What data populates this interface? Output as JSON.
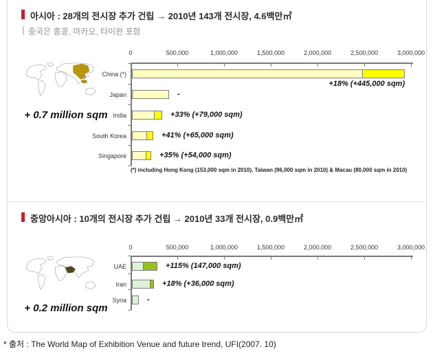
{
  "page": {
    "source_note": "* 출처 : The World Map of Exhibition Venue and future trend, UFI(2007. 10)"
  },
  "colors": {
    "accent_red": "#c8202f",
    "asia_map_highlight": "#b8960f",
    "mideast_map_highlight": "#4d4a15",
    "bar_base_yellow": "#ffffc2",
    "bar_add_yellow": "#ffff00",
    "bar_base_green": "#ddf3d8",
    "bar_add_green": "#95c11f"
  },
  "sections": [
    {
      "title": "아시아 : 28개의 전시장 추가 건립 → 2010년 143개 전시장, 4.6백만㎡",
      "subtitle": "중국은 홍콩, 마카오, 타이완 포함",
      "map_caption": "+ 0.7 million sqm",
      "footnote": "(*) including Hong Kong (153,000 sqm in 2010), Taiwan (96,000 sqm in 2010) & Macau (80,000 sqm in 2010)"
    },
    {
      "title": "중앙아시아 : 10개의 전시장 추가 건립 → 2010년 33개 전시장, 0.9백만㎡",
      "map_caption": "+ 0.2 million sqm"
    }
  ],
  "chart_data": [
    {
      "type": "bar",
      "orientation": "horizontal",
      "title": "Asia exhibition venue space 2010 (sqm)",
      "xlim": [
        0,
        3000000
      ],
      "unit": "sqm",
      "tick_labels": [
        "0",
        "500,000",
        "1,000,000",
        "1,500,000",
        "2,000,000",
        "2,500,000",
        "3,000,000"
      ],
      "colors": {
        "base": "#ffffc2",
        "add": "#ffff00"
      },
      "rows": [
        {
          "label": "China (*)",
          "base": 2472000,
          "add": 445000,
          "annotation": "+18% (+445,000 sqm)",
          "annotation_pos": "below"
        },
        {
          "label": "Japan",
          "base": 400000,
          "add": 0,
          "annotation": "-",
          "annotation_pos": "right"
        },
        {
          "label": "India",
          "base": 239000,
          "add": 79000,
          "annotation": "+33% (+79,000 sqm)",
          "annotation_pos": "right"
        },
        {
          "label": "South Korea",
          "base": 158500,
          "add": 65000,
          "annotation": "+41% (+65,000 sqm)",
          "annotation_pos": "right"
        },
        {
          "label": "Singapore",
          "base": 154000,
          "add": 54000,
          "annotation": "+35% (+54,000 sqm)",
          "annotation_pos": "right"
        }
      ]
    },
    {
      "type": "bar",
      "orientation": "horizontal",
      "title": "Central Asia exhibition venue space 2010 (sqm)",
      "xlim": [
        0,
        3000000
      ],
      "unit": "sqm",
      "tick_labels": [
        "0",
        "500,000",
        "1,000,000",
        "1,500,000",
        "2,000,000",
        "2,500,000",
        "3,000,000"
      ],
      "colors": {
        "base": "#ddf3d8",
        "add": "#95c11f"
      },
      "rows": [
        {
          "label": "UAE",
          "base": 128000,
          "add": 147000,
          "annotation": "+115% (147,000 sqm)",
          "annotation_pos": "right"
        },
        {
          "label": "Iran",
          "base": 200000,
          "add": 36000,
          "annotation": "+18% (+36,000 sqm)",
          "annotation_pos": "right"
        },
        {
          "label": "Syria",
          "base": 70000,
          "add": 0,
          "annotation": "-",
          "annotation_pos": "right"
        }
      ]
    }
  ]
}
